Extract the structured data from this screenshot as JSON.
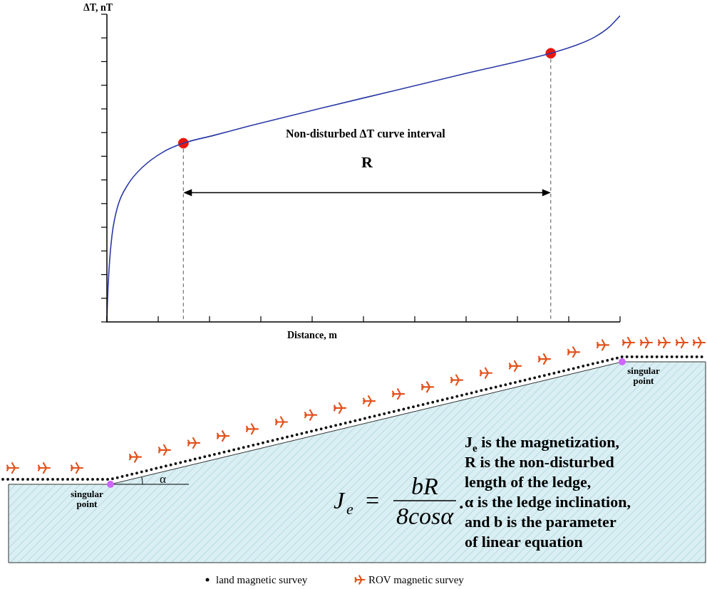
{
  "chart_data": {
    "type": "line",
    "y_label": "ΔT, nT",
    "x_label": "Distance, m",
    "xlim": [
      0,
      10
    ],
    "xticks": [
      0,
      1,
      2,
      3,
      4,
      5,
      6,
      7,
      8,
      9,
      10
    ],
    "ylim": [
      0,
      13
    ],
    "yticks": [
      0,
      1,
      2,
      3,
      4,
      5,
      6,
      7,
      8,
      9,
      10,
      11,
      12,
      13
    ],
    "tick_labels": false,
    "grid": false,
    "series": [
      {
        "type": "line",
        "color": "#2b3aa6",
        "x": [
          0,
          0.01,
          0.04,
          0.1,
          0.21,
          0.42,
          0.69,
          1.08,
          1.49,
          2.08,
          2.78,
          4.17,
          5.56,
          6.94,
          8.65,
          9.17,
          9.51,
          9.79,
          10.0
        ],
        "values": [
          0,
          0.81,
          2.17,
          3.67,
          4.88,
          5.84,
          6.53,
          7.16,
          7.55,
          7.88,
          8.28,
          9.03,
          9.75,
          10.47,
          11.35,
          11.71,
          12.04,
          12.46,
          12.94
        ]
      },
      {
        "type": "scatter",
        "color": "#e8150e",
        "marker": "circle",
        "x": [
          1.49,
          8.65
        ],
        "values": [
          7.55,
          11.35
        ]
      }
    ],
    "annotations": [
      {
        "text": "Non-disturbed ΔT curve interval"
      },
      {
        "text": "R"
      }
    ]
  },
  "diagram": {
    "singular_points": [
      "singular point",
      "singular point"
    ],
    "angle_label": "α",
    "formula": {
      "lhs": "J",
      "lhs_sub": "e",
      "equals": "=",
      "numerator": "bR",
      "denominator": "8cosα",
      "end": "."
    },
    "description": [
      [
        {
          "text": "J"
        },
        {
          "text": "e",
          "sub": true
        },
        {
          "text": " is the magnetization,"
        }
      ],
      [
        {
          "text": "R is the non-disturbed"
        }
      ],
      [
        {
          "text": "length of the ledge,"
        }
      ],
      [
        {
          "text": "α is the ledge inclination,"
        }
      ],
      [
        {
          "text": "and b is the parameter"
        }
      ],
      [
        {
          "text": "of linear equation"
        }
      ]
    ],
    "legend": [
      {
        "marker": "dot",
        "label": "land magnetic survey"
      },
      {
        "marker": "plane",
        "label": "ROV magnetic survey"
      }
    ]
  }
}
